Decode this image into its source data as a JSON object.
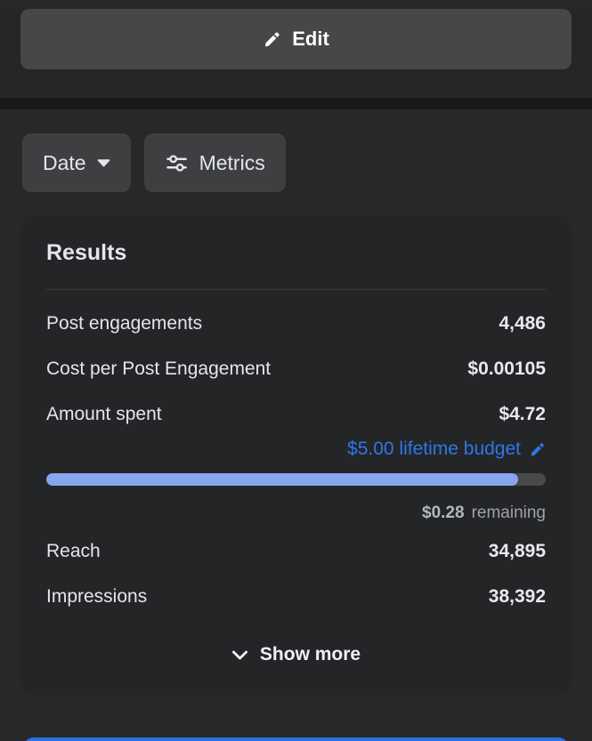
{
  "colors": {
    "page_bg": "#28282a",
    "top_bg": "#252627",
    "divider_strip": "#18191a",
    "card_bg": "#242527",
    "button_gray": "#464748",
    "chip_gray": "#3e3f41",
    "text_primary": "#e4e6eb",
    "text_secondary": "#a8abb0",
    "accent_blue": "#2e77e8",
    "progress_fill": "#88a5ef",
    "progress_track": "#48494b",
    "bottom_button_blue": "#2374e1"
  },
  "edit_bar": {
    "edit_label": "Edit",
    "edit_icon": "pencil-icon"
  },
  "filters": {
    "date_label": "Date",
    "date_icon": "caret-down-icon",
    "metrics_label": "Metrics",
    "metrics_icon": "sliders-icon"
  },
  "results_card": {
    "title": "Results",
    "metrics": [
      {
        "label": "Post engagements",
        "value": "4,486"
      },
      {
        "label": "Cost per Post Engagement",
        "value": "$0.00105"
      },
      {
        "label": "Amount spent",
        "value": "$4.72"
      }
    ],
    "budget": {
      "link_text": "$5.00 lifetime budget",
      "edit_icon": "pencil-icon",
      "progress_percent": 94.4,
      "remaining_amount": "$0.28",
      "remaining_label": "remaining"
    },
    "metrics_extra": [
      {
        "label": "Reach",
        "value": "34,895"
      },
      {
        "label": "Impressions",
        "value": "38,392"
      }
    ],
    "show_more_label": "Show more",
    "show_more_icon": "chevron-down-icon"
  }
}
